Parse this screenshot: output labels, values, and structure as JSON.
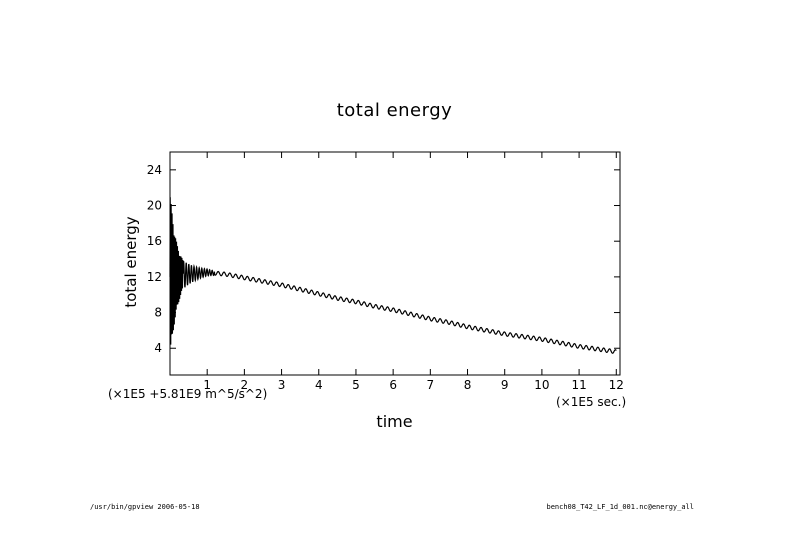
{
  "chart_data": {
    "type": "line",
    "title": "total energy",
    "xlabel": "time",
    "ylabel": "total energy",
    "x_unit_label": "(×1E5 sec.)",
    "y_unit_label": "(×1E5 +5.81E9 m^5/s^2)",
    "xlim": [
      0,
      12.1
    ],
    "ylim": [
      1.0,
      26.0
    ],
    "xticks": [
      1,
      2,
      3,
      4,
      5,
      6,
      7,
      8,
      9,
      10,
      11,
      12
    ],
    "yticks": [
      4,
      8,
      12,
      16,
      20,
      24
    ],
    "grid": false,
    "series": [
      {
        "x": [
          0.0,
          0.1,
          0.2,
          0.3,
          0.5,
          0.75,
          1.0,
          1.5,
          2.0,
          2.5,
          3.0,
          3.5,
          4.0,
          4.5,
          5.0,
          5.5,
          6.0,
          6.5,
          7.0,
          7.5,
          8.0,
          8.5,
          9.0,
          9.5,
          10.0,
          10.5,
          11.0,
          11.5,
          12.0
        ],
        "y": [
          12.0,
          12.0,
          12.0,
          12.2,
          12.3,
          12.4,
          12.5,
          12.3,
          11.9,
          11.5,
          11.1,
          10.6,
          10.1,
          9.6,
          9.2,
          8.7,
          8.3,
          7.8,
          7.3,
          6.9,
          6.4,
          6.0,
          5.6,
          5.3,
          5.0,
          4.6,
          4.2,
          3.9,
          3.6
        ]
      }
    ]
  },
  "footer": {
    "left": "/usr/bin/gpview  2006-05-18",
    "right": "bench08_T42_LF_1d_001.nc@energy_all"
  }
}
